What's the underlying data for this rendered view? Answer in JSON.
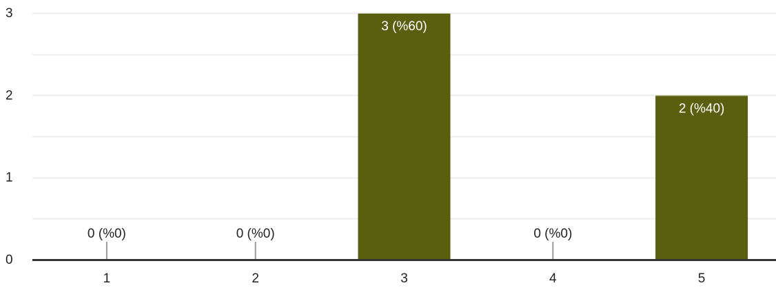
{
  "chart_data": {
    "type": "bar",
    "categories": [
      "1",
      "2",
      "3",
      "4",
      "5"
    ],
    "values": [
      0,
      0,
      3,
      0,
      2
    ],
    "data_labels": [
      "0 (%0)",
      "0 (%0)",
      "3 (%60)",
      "0 (%0)",
      "2 (%40)"
    ],
    "y_ticks": [
      "0",
      "1",
      "2",
      "3"
    ],
    "ylim": [
      0,
      3
    ],
    "grid": true,
    "minor_grid_step": 0.5,
    "title": "",
    "xlabel": "",
    "ylabel": "",
    "legend": "none",
    "colors": {
      "bar": "#5a5f0f",
      "grid": "#ececec",
      "axis": "#333333",
      "text": "#222222",
      "label_inside": "#ffffff",
      "zero_marker": "#999999"
    }
  }
}
